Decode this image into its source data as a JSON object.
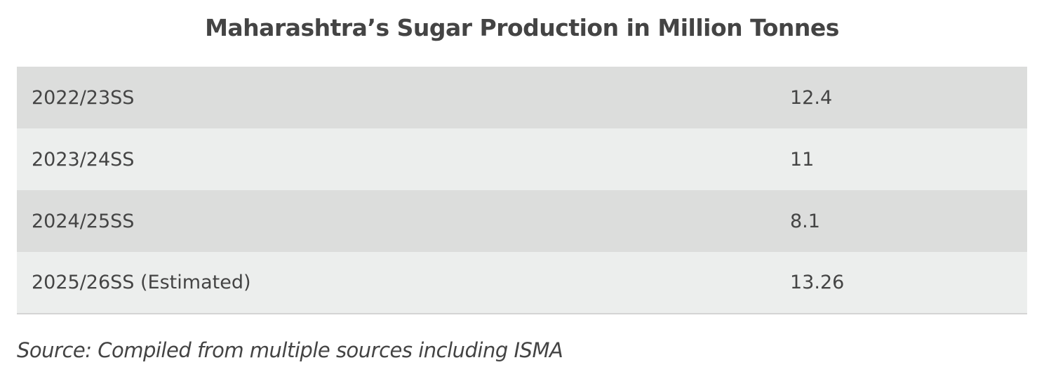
{
  "header": {
    "title": "Maharashtra’s Sugar Production in Million Tonnes"
  },
  "table": {
    "rows": [
      [
        "2022/23SS",
        "12.4"
      ],
      [
        "2023/24SS",
        "11"
      ],
      [
        "2024/25SS",
        "8.1"
      ],
      [
        "2025/26SS (Estimated)",
        "13.26"
      ]
    ]
  },
  "source": "Source: Compiled from multiple sources including ISMA"
}
